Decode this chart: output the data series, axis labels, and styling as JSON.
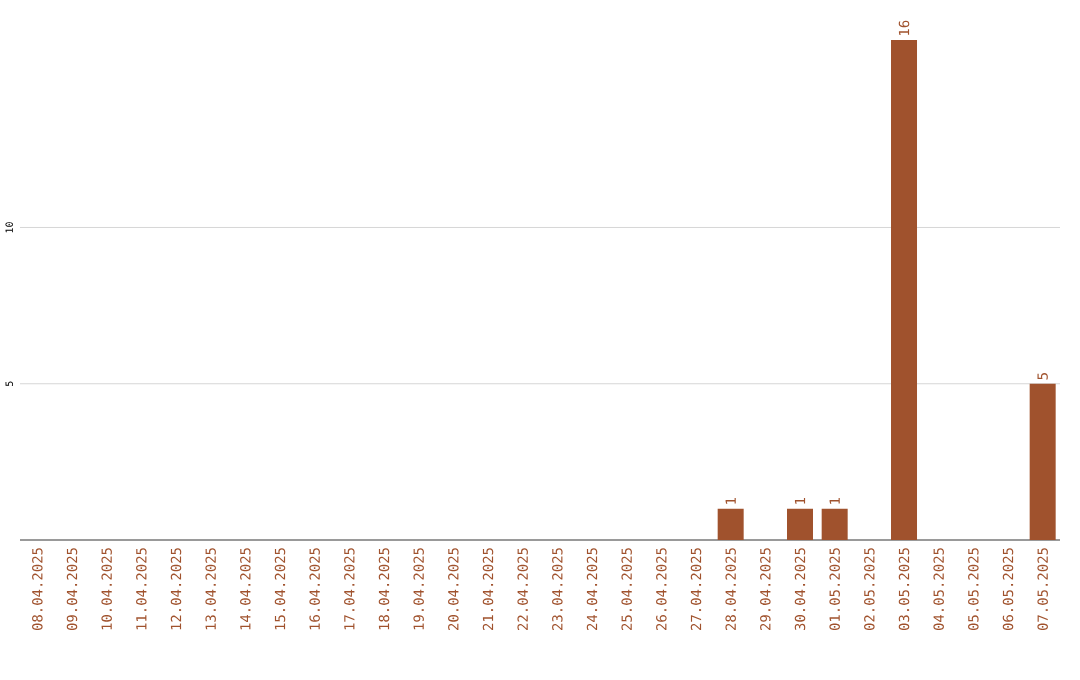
{
  "chart_data": {
    "type": "bar",
    "categories": [
      "08.04.2025",
      "09.04.2025",
      "10.04.2025",
      "11.04.2025",
      "12.04.2025",
      "13.04.2025",
      "14.04.2025",
      "15.04.2025",
      "16.04.2025",
      "17.04.2025",
      "18.04.2025",
      "19.04.2025",
      "20.04.2025",
      "21.04.2025",
      "22.04.2025",
      "23.04.2025",
      "24.04.2025",
      "25.04.2025",
      "26.04.2025",
      "27.04.2025",
      "28.04.2025",
      "29.04.2025",
      "30.04.2025",
      "01.05.2025",
      "02.05.2025",
      "03.05.2025",
      "04.05.2025",
      "05.05.2025",
      "06.05.2025",
      "07.05.2025"
    ],
    "values": [
      0,
      0,
      0,
      0,
      0,
      0,
      0,
      0,
      0,
      0,
      0,
      0,
      0,
      0,
      0,
      0,
      0,
      0,
      0,
      0,
      1,
      0,
      1,
      1,
      0,
      16,
      0,
      0,
      0,
      5
    ],
    "value_labels": [
      null,
      null,
      null,
      null,
      null,
      null,
      null,
      null,
      null,
      null,
      null,
      null,
      null,
      null,
      null,
      null,
      null,
      null,
      null,
      null,
      "1",
      null,
      "1",
      "1",
      null,
      "16",
      null,
      null,
      null,
      "5"
    ],
    "color": "#a0522d",
    "ylim": [
      0,
      16
    ],
    "yticks": [
      5,
      10
    ],
    "grid": "y"
  }
}
